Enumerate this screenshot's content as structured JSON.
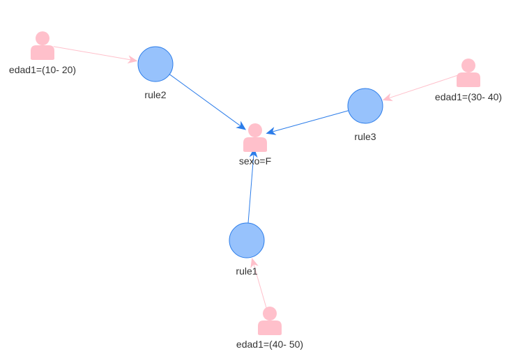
{
  "colors": {
    "rule_fill": "#97C2FC",
    "rule_stroke": "#2B7CE9",
    "person_fill": "#FFC0CB",
    "edge_rule_to_target": "#2B7CE9",
    "edge_item_to_rule": "#FFC0CB",
    "label_text": "#333333"
  },
  "nodes": {
    "edad_10_20": {
      "label": "edad1=(10- 20)",
      "kind": "item",
      "icon": "user-icon"
    },
    "edad_30_40": {
      "label": "edad1=(30- 40)",
      "kind": "item",
      "icon": "user-icon"
    },
    "edad_40_50": {
      "label": "edad1=(40- 50)",
      "kind": "item",
      "icon": "user-icon"
    },
    "sexo_f": {
      "label": "sexo=F",
      "kind": "item",
      "icon": "user-icon"
    },
    "rule1": {
      "label": "rule1",
      "kind": "rule"
    },
    "rule2": {
      "label": "rule2",
      "kind": "rule"
    },
    "rule3": {
      "label": "rule3",
      "kind": "rule"
    }
  },
  "edges": [
    {
      "from": "edad_10_20",
      "to": "rule2"
    },
    {
      "from": "edad_30_40",
      "to": "rule3"
    },
    {
      "from": "edad_40_50",
      "to": "rule1"
    },
    {
      "from": "rule1",
      "to": "sexo_f"
    },
    {
      "from": "rule2",
      "to": "sexo_f"
    },
    {
      "from": "rule3",
      "to": "sexo_f"
    }
  ]
}
